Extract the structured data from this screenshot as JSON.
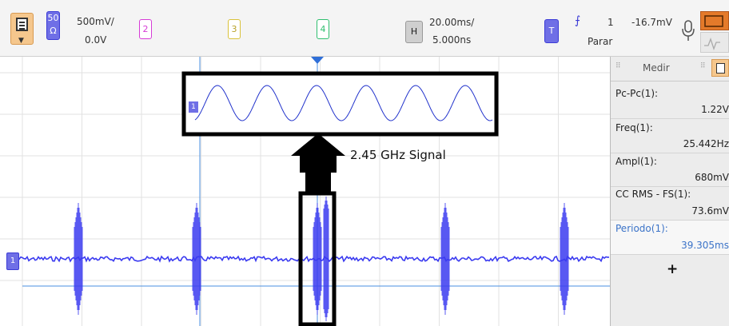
{
  "toolbar": {
    "ch1_impedance_top": "50",
    "ch1_impedance_unit": "Ω",
    "ch1_scale": "500mV/",
    "ch1_offset": "0.0V",
    "ch2_label": "2",
    "ch3_label": "3",
    "ch4_label": "4",
    "horizontal_label": "H",
    "time_scale": "20.00ms/",
    "time_offset": "5.000ns",
    "trigger_label": "T",
    "trigger_edge_symbol": "⨍",
    "trigger_source": "1",
    "trigger_level": "-16.7mV",
    "run_state": "Parar"
  },
  "colors": {
    "ch1": "#3b3bf0",
    "ch2": "#d63bd6",
    "ch3": "#d9c23a",
    "ch4": "#2fbf6f",
    "accent_orange": "#f5c78d"
  },
  "measurements": {
    "tab_label": "Medir",
    "items": [
      {
        "label": "Pc-Pc(1):",
        "value": "1.22V"
      },
      {
        "label": "Freq(1):",
        "value": "25.442Hz"
      },
      {
        "label": "Ampl(1):",
        "value": "680mV"
      },
      {
        "label": "CC RMS - FS(1):",
        "value": "73.6mV"
      },
      {
        "label": "Periodo(1):",
        "value": "39.305ms"
      }
    ],
    "add_symbol": "+"
  },
  "plot": {
    "channel_marker": "1",
    "inset_marker": "1",
    "annotation": "2.45 GHz Signal"
  }
}
